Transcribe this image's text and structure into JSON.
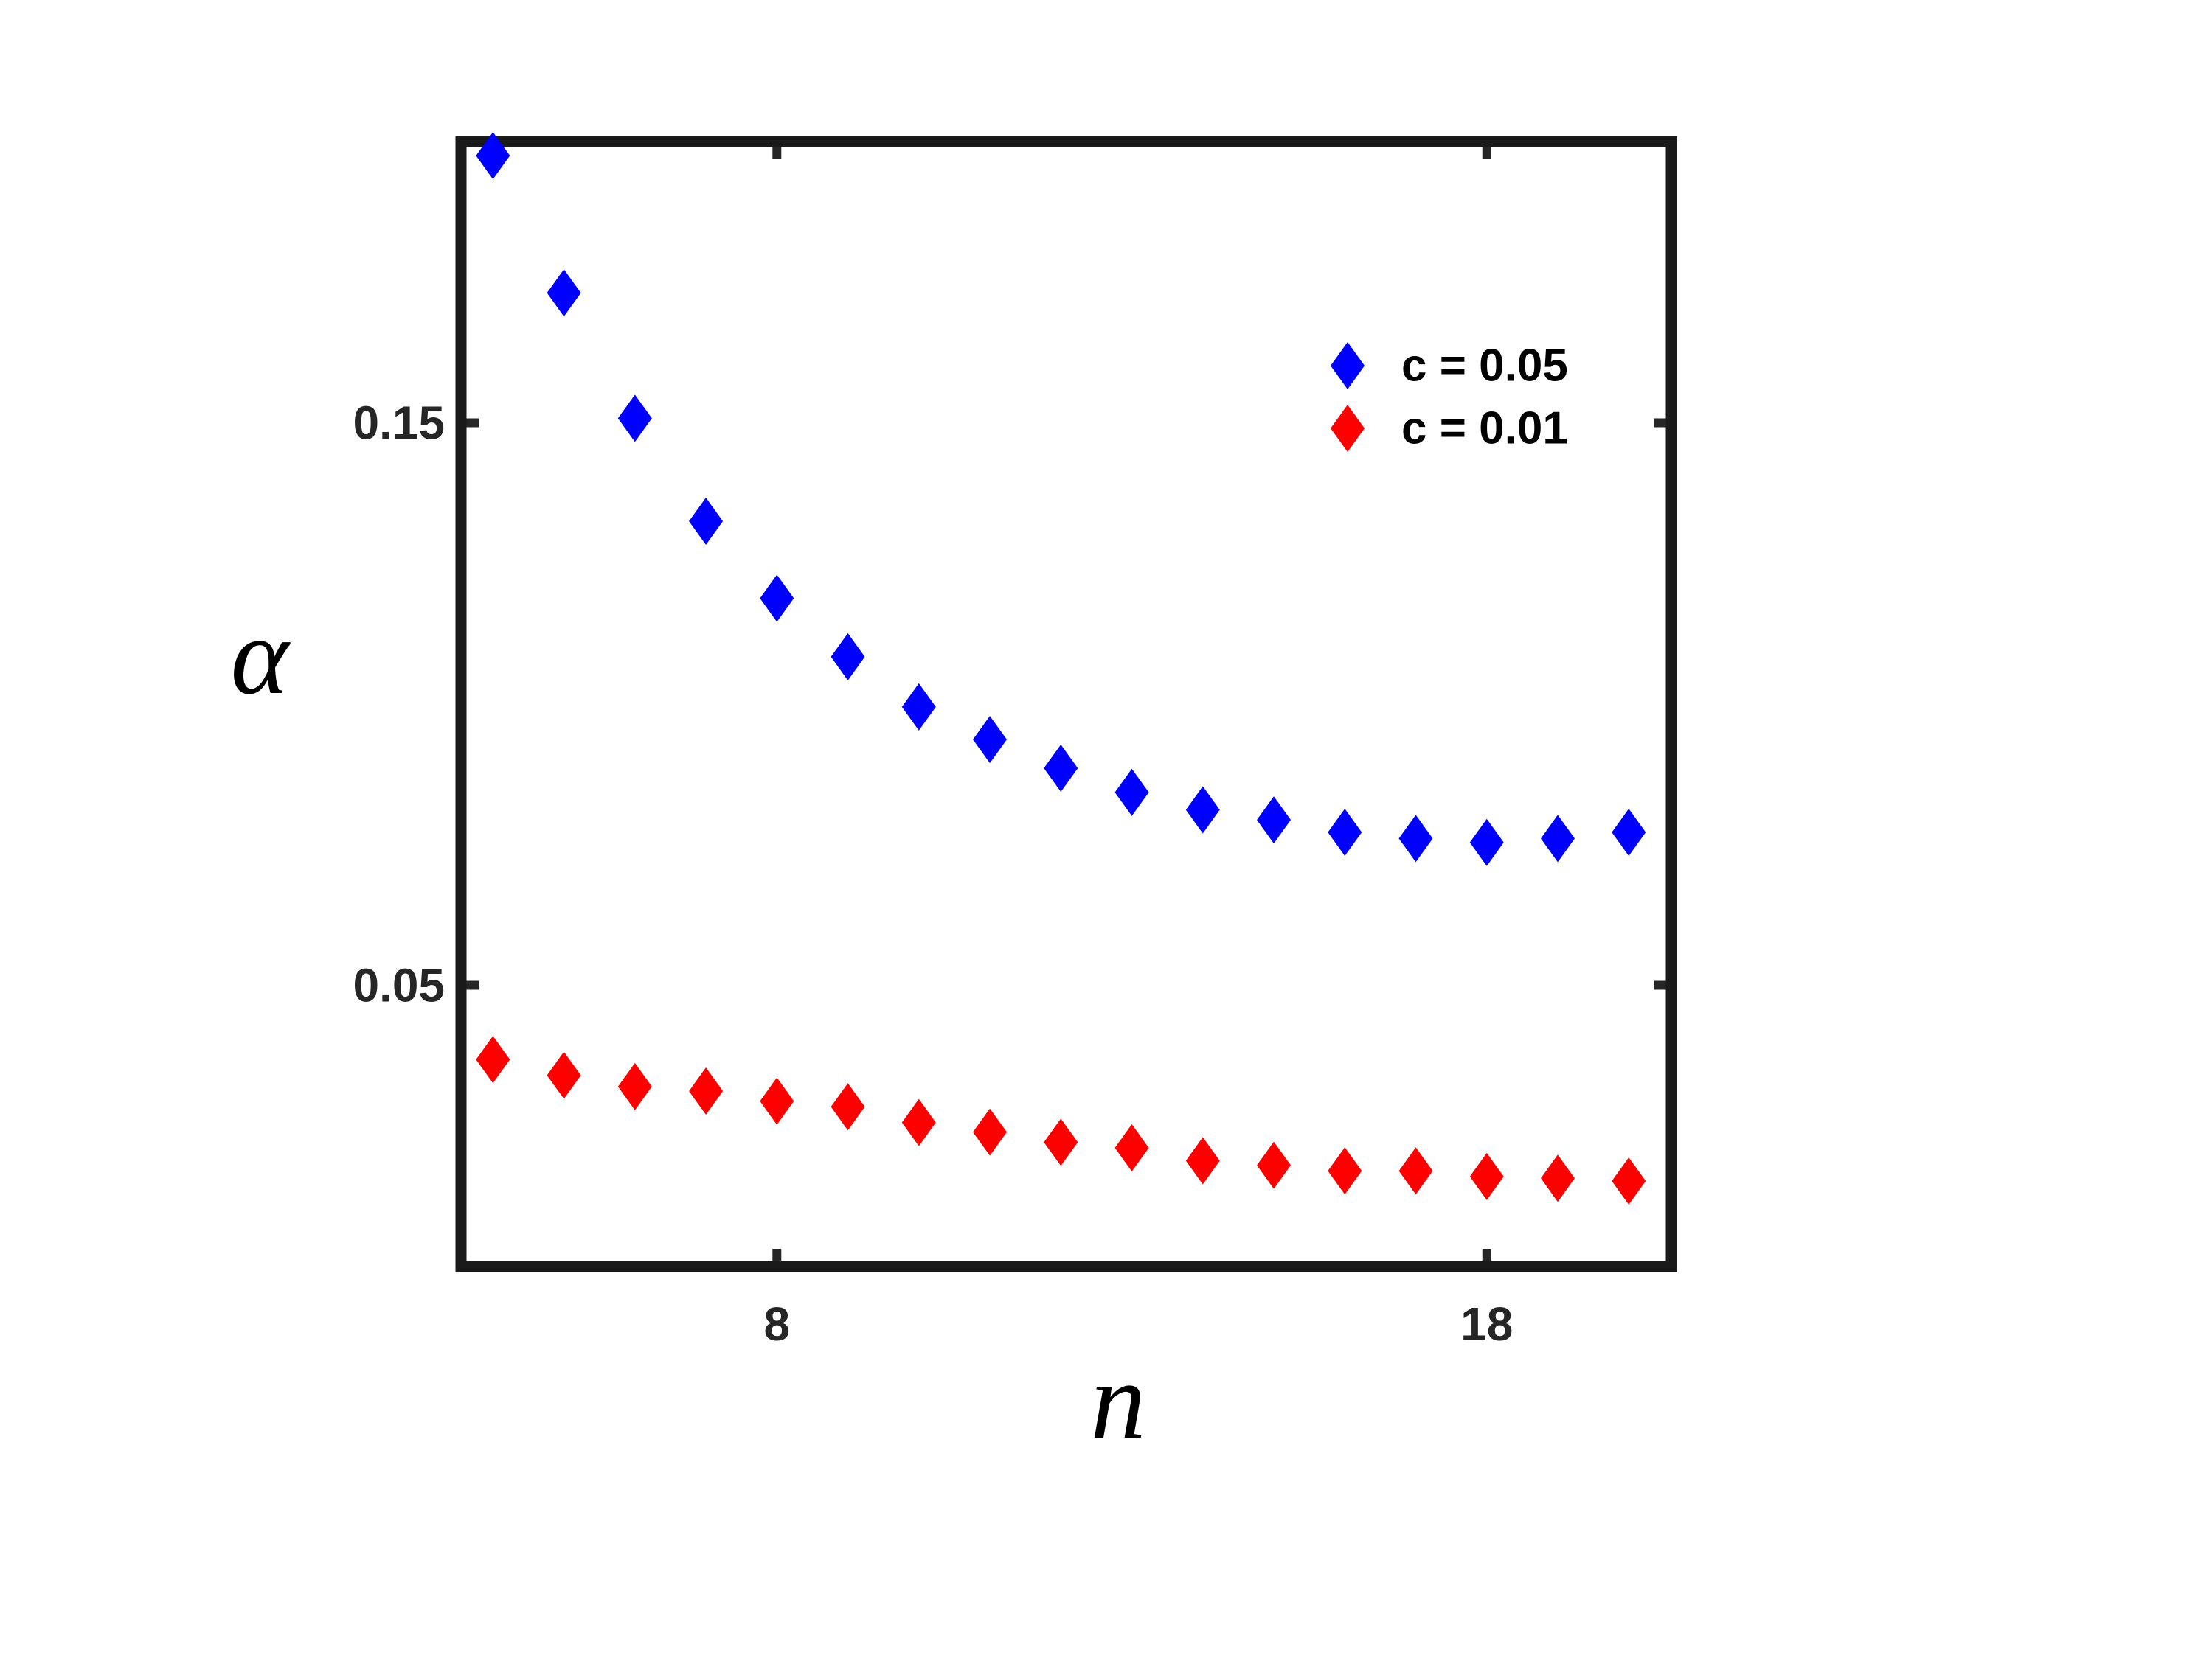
{
  "chart_data": {
    "type": "scatter",
    "xlabel": "n",
    "ylabel": "α",
    "x": [
      4,
      5,
      6,
      7,
      8,
      9,
      10,
      11,
      12,
      13,
      14,
      15,
      16,
      17,
      18,
      19,
      20
    ],
    "series": [
      {
        "name": "c = 0.05",
        "color": "#0000ff",
        "values": [
          0.1975,
          0.1731,
          0.1508,
          0.1325,
          0.1188,
          0.1084,
          0.0995,
          0.0937,
          0.0886,
          0.0843,
          0.0812,
          0.0794,
          0.0772,
          0.0761,
          0.0754,
          0.0761,
          0.0772
        ]
      },
      {
        "name": "c = 0.01",
        "color": "#ff0000",
        "values": [
          0.0368,
          0.034,
          0.032,
          0.0312,
          0.0294,
          0.0284,
          0.0256,
          0.0239,
          0.0221,
          0.0211,
          0.0188,
          0.018,
          0.017,
          0.017,
          0.016,
          0.0157,
          0.0152
        ]
      }
    ],
    "xlim": [
      3.55,
      20.6
    ],
    "ylim": [
      0,
      0.2
    ],
    "xticks": [
      8,
      18
    ],
    "yticks": [
      0.05,
      0.15
    ],
    "marker": "diamond",
    "legend": "upper right",
    "grid": false
  }
}
